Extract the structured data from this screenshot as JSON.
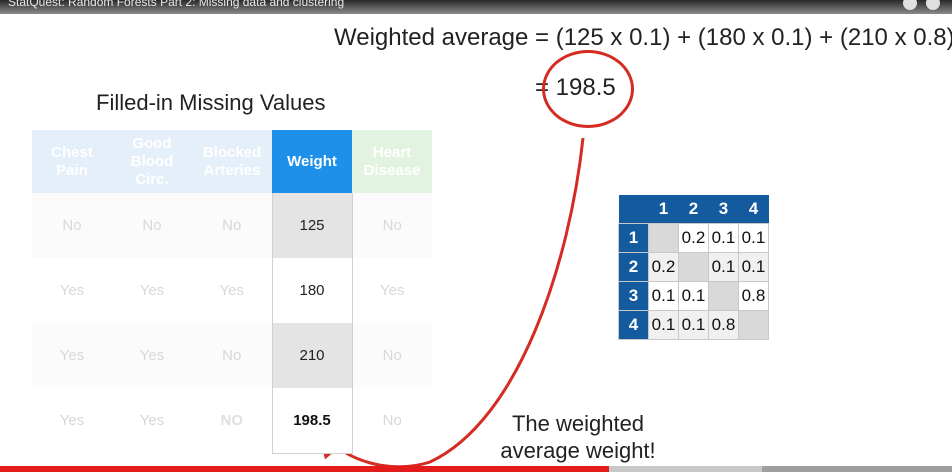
{
  "video": {
    "title": "StatQuest: Random Forests Part 2: Missing data and clustering",
    "progress_fraction": 0.64,
    "buffer_fraction": 0.8,
    "progress_color": "#e21b1b"
  },
  "slide": {
    "formula": "Weighted average = (125 x 0.1) + (180 x 0.1) + (210 x 0.8)",
    "result": "= 198.5",
    "table_title": "Filled-in Missing Values",
    "note_line1": "The weighted",
    "note_line2": "average weight!"
  },
  "table": {
    "headers": [
      {
        "label": "Chest Pain",
        "style": "faded-blue"
      },
      {
        "label": "Good Blood Circ.",
        "style": "faded-blue"
      },
      {
        "label": "Blocked Arteries",
        "style": "faded-blue"
      },
      {
        "label": "Weight",
        "style": "weight-h"
      },
      {
        "label": "Heart Disease",
        "style": "faded-green"
      }
    ],
    "rows": [
      [
        "No",
        "No",
        "No",
        "125",
        "No"
      ],
      [
        "Yes",
        "Yes",
        "Yes",
        "180",
        "Yes"
      ],
      [
        "Yes",
        "Yes",
        "No",
        "210",
        "No"
      ],
      [
        "Yes",
        "Yes",
        "NO",
        "198.5",
        "No"
      ]
    ]
  },
  "matrix": {
    "col_headers": [
      "1",
      "2",
      "3",
      "4"
    ],
    "rows": [
      {
        "label": "1",
        "cells": [
          "",
          "0.2",
          "0.1",
          "0.1"
        ]
      },
      {
        "label": "2",
        "cells": [
          "0.2",
          "",
          "0.1",
          "0.1"
        ]
      },
      {
        "label": "3",
        "cells": [
          "0.1",
          "0.1",
          "",
          "0.8"
        ]
      },
      {
        "label": "4",
        "cells": [
          "0.1",
          "0.1",
          "0.8",
          ""
        ]
      }
    ],
    "header_color": "#135a9e"
  },
  "colors": {
    "weight_header": "#1e90ea",
    "accent_red": "#d42b22"
  }
}
